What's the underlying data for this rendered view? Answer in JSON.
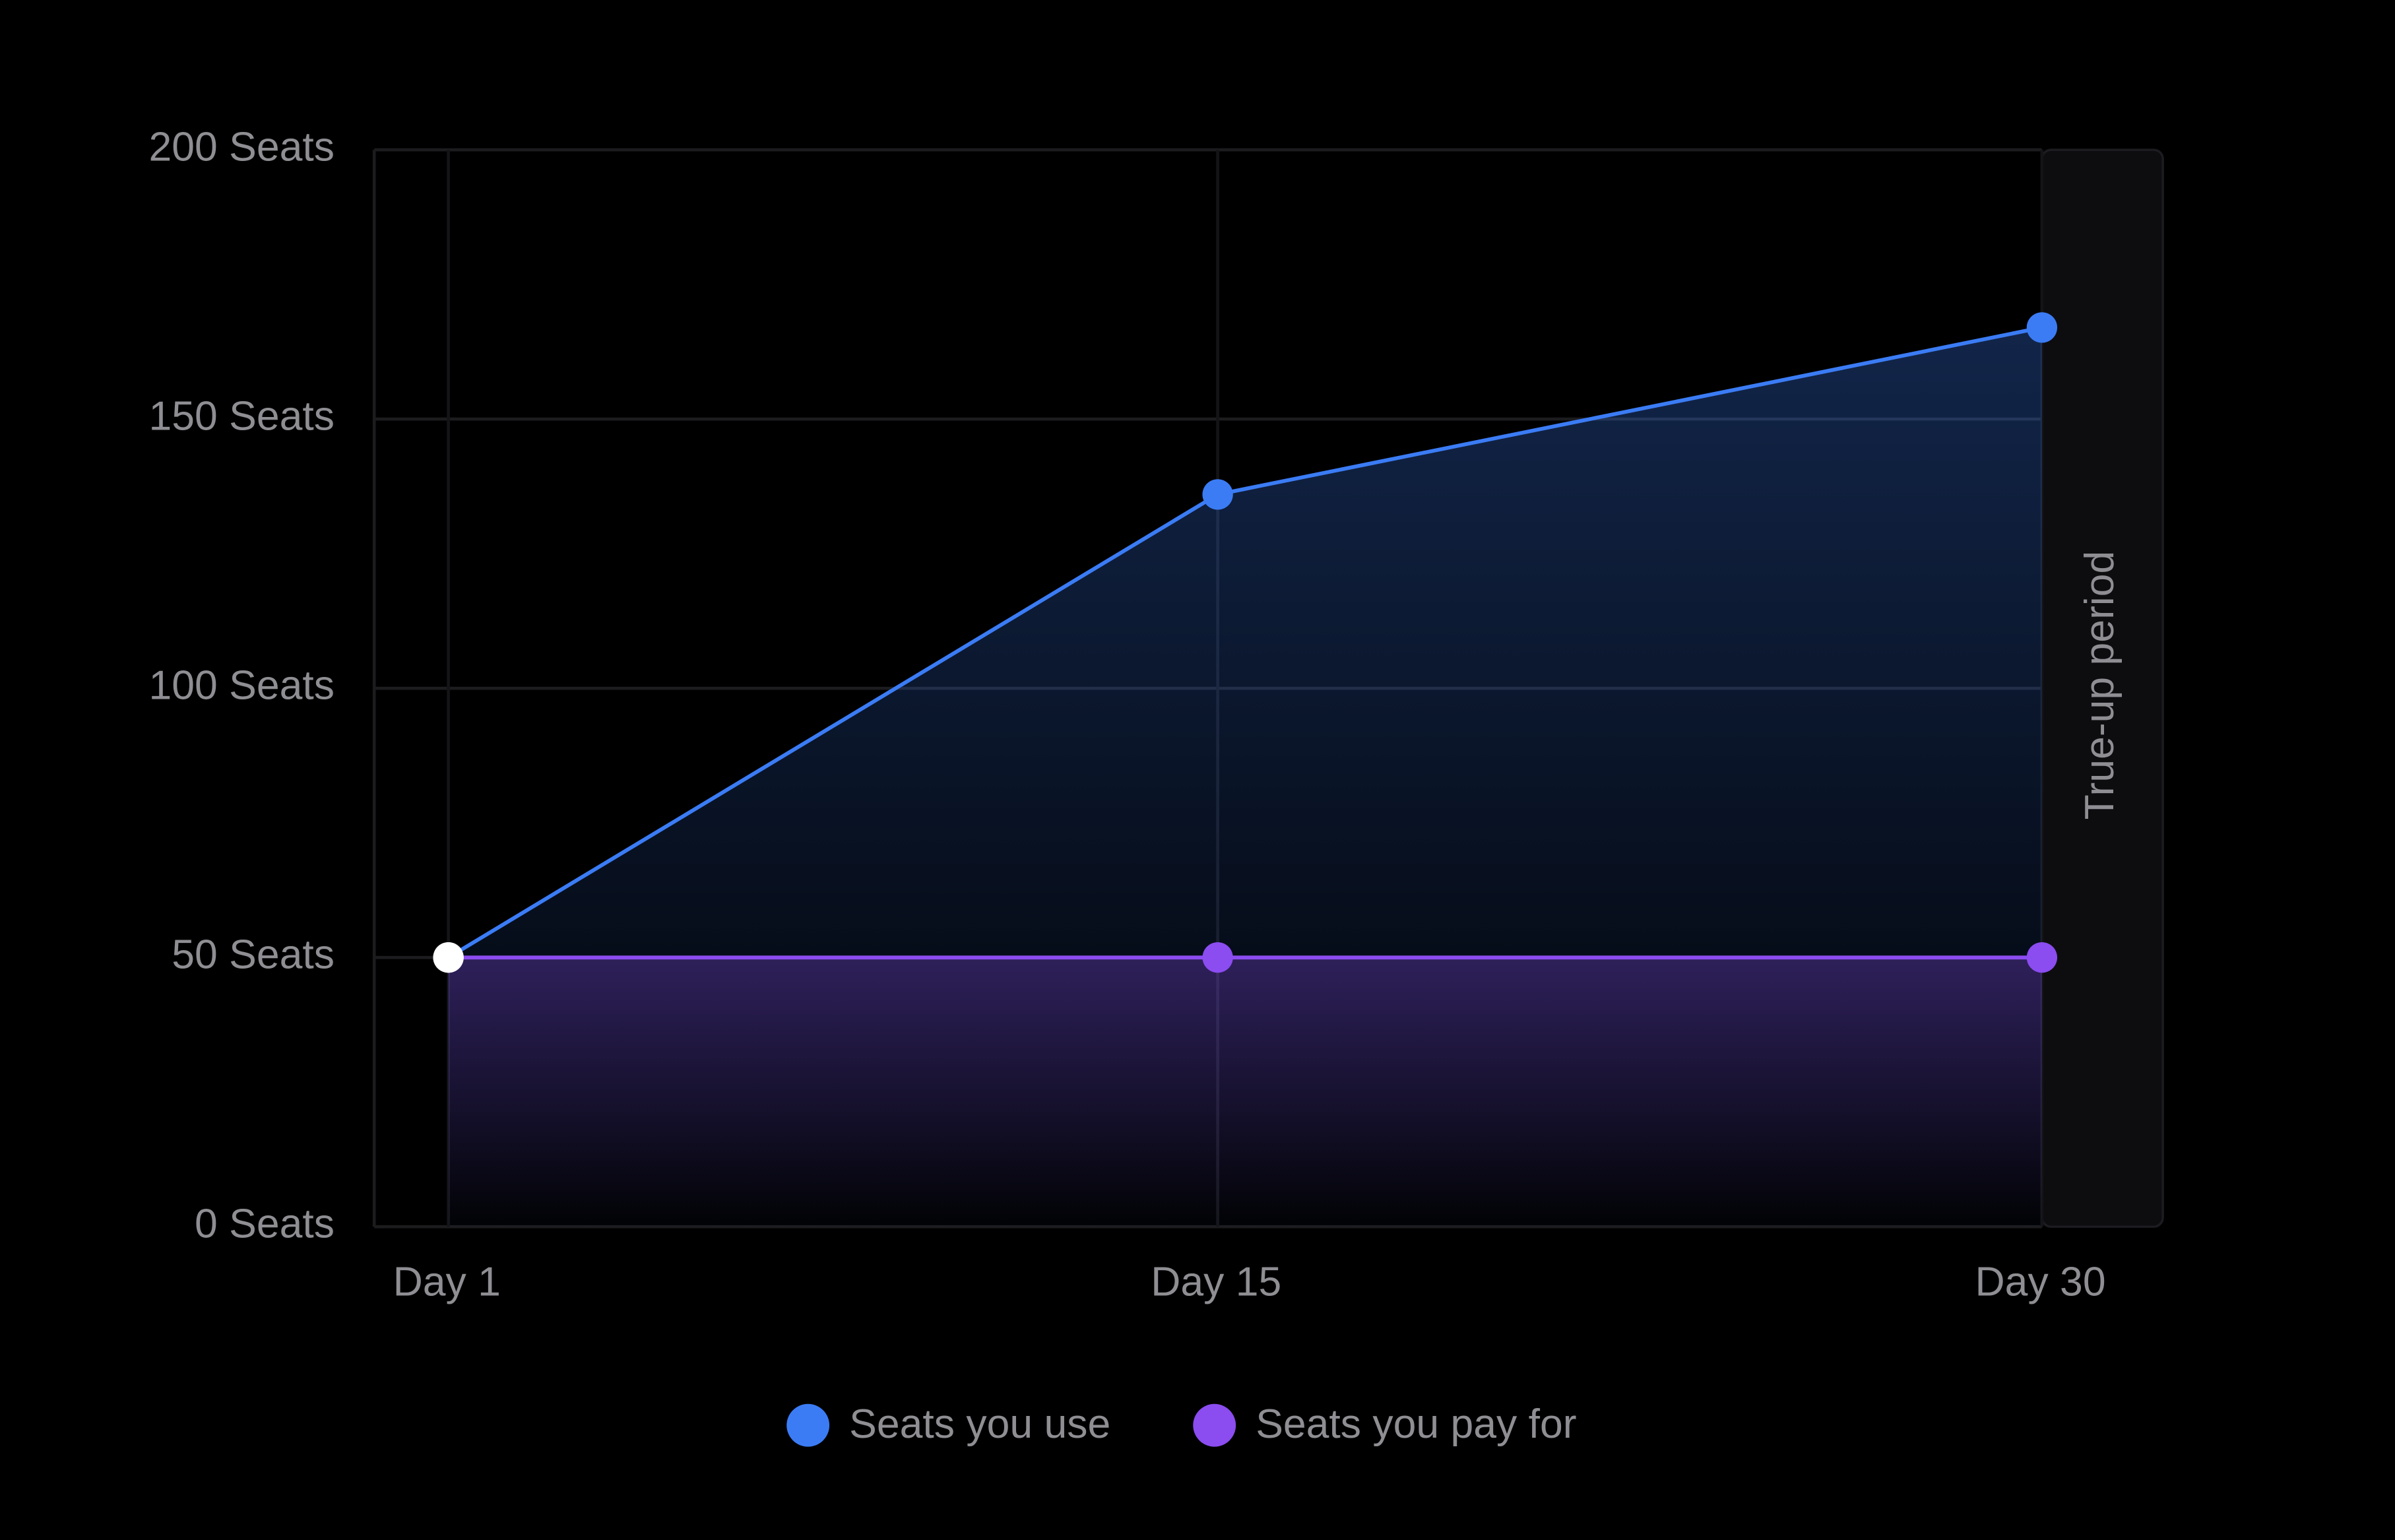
{
  "chart_data": {
    "type": "area",
    "x": [
      1,
      15,
      30
    ],
    "xlim": [
      -0.35,
      32.2
    ],
    "xticks": [
      {
        "value": 1,
        "label": "Day 1"
      },
      {
        "value": 15,
        "label": "Day 15"
      },
      {
        "value": 30,
        "label": "Day 30"
      }
    ],
    "ylim": [
      0,
      200
    ],
    "yticks": [
      {
        "value": 0,
        "label": "0 Seats"
      },
      {
        "value": 50,
        "label": "50 Seats"
      },
      {
        "value": 100,
        "label": "100 Seats"
      },
      {
        "value": 150,
        "label": "150 Seats"
      },
      {
        "value": 200,
        "label": "200 Seats"
      }
    ],
    "grid": true,
    "series": [
      {
        "name": "Seats you use",
        "color": "#3b7cf5",
        "values": [
          50,
          136,
          167
        ]
      },
      {
        "name": "Seats you pay for",
        "color": "#8b4cf0",
        "values": [
          50,
          50,
          50
        ]
      }
    ],
    "band": {
      "label": "True-up period"
    },
    "legend": "bottom"
  }
}
